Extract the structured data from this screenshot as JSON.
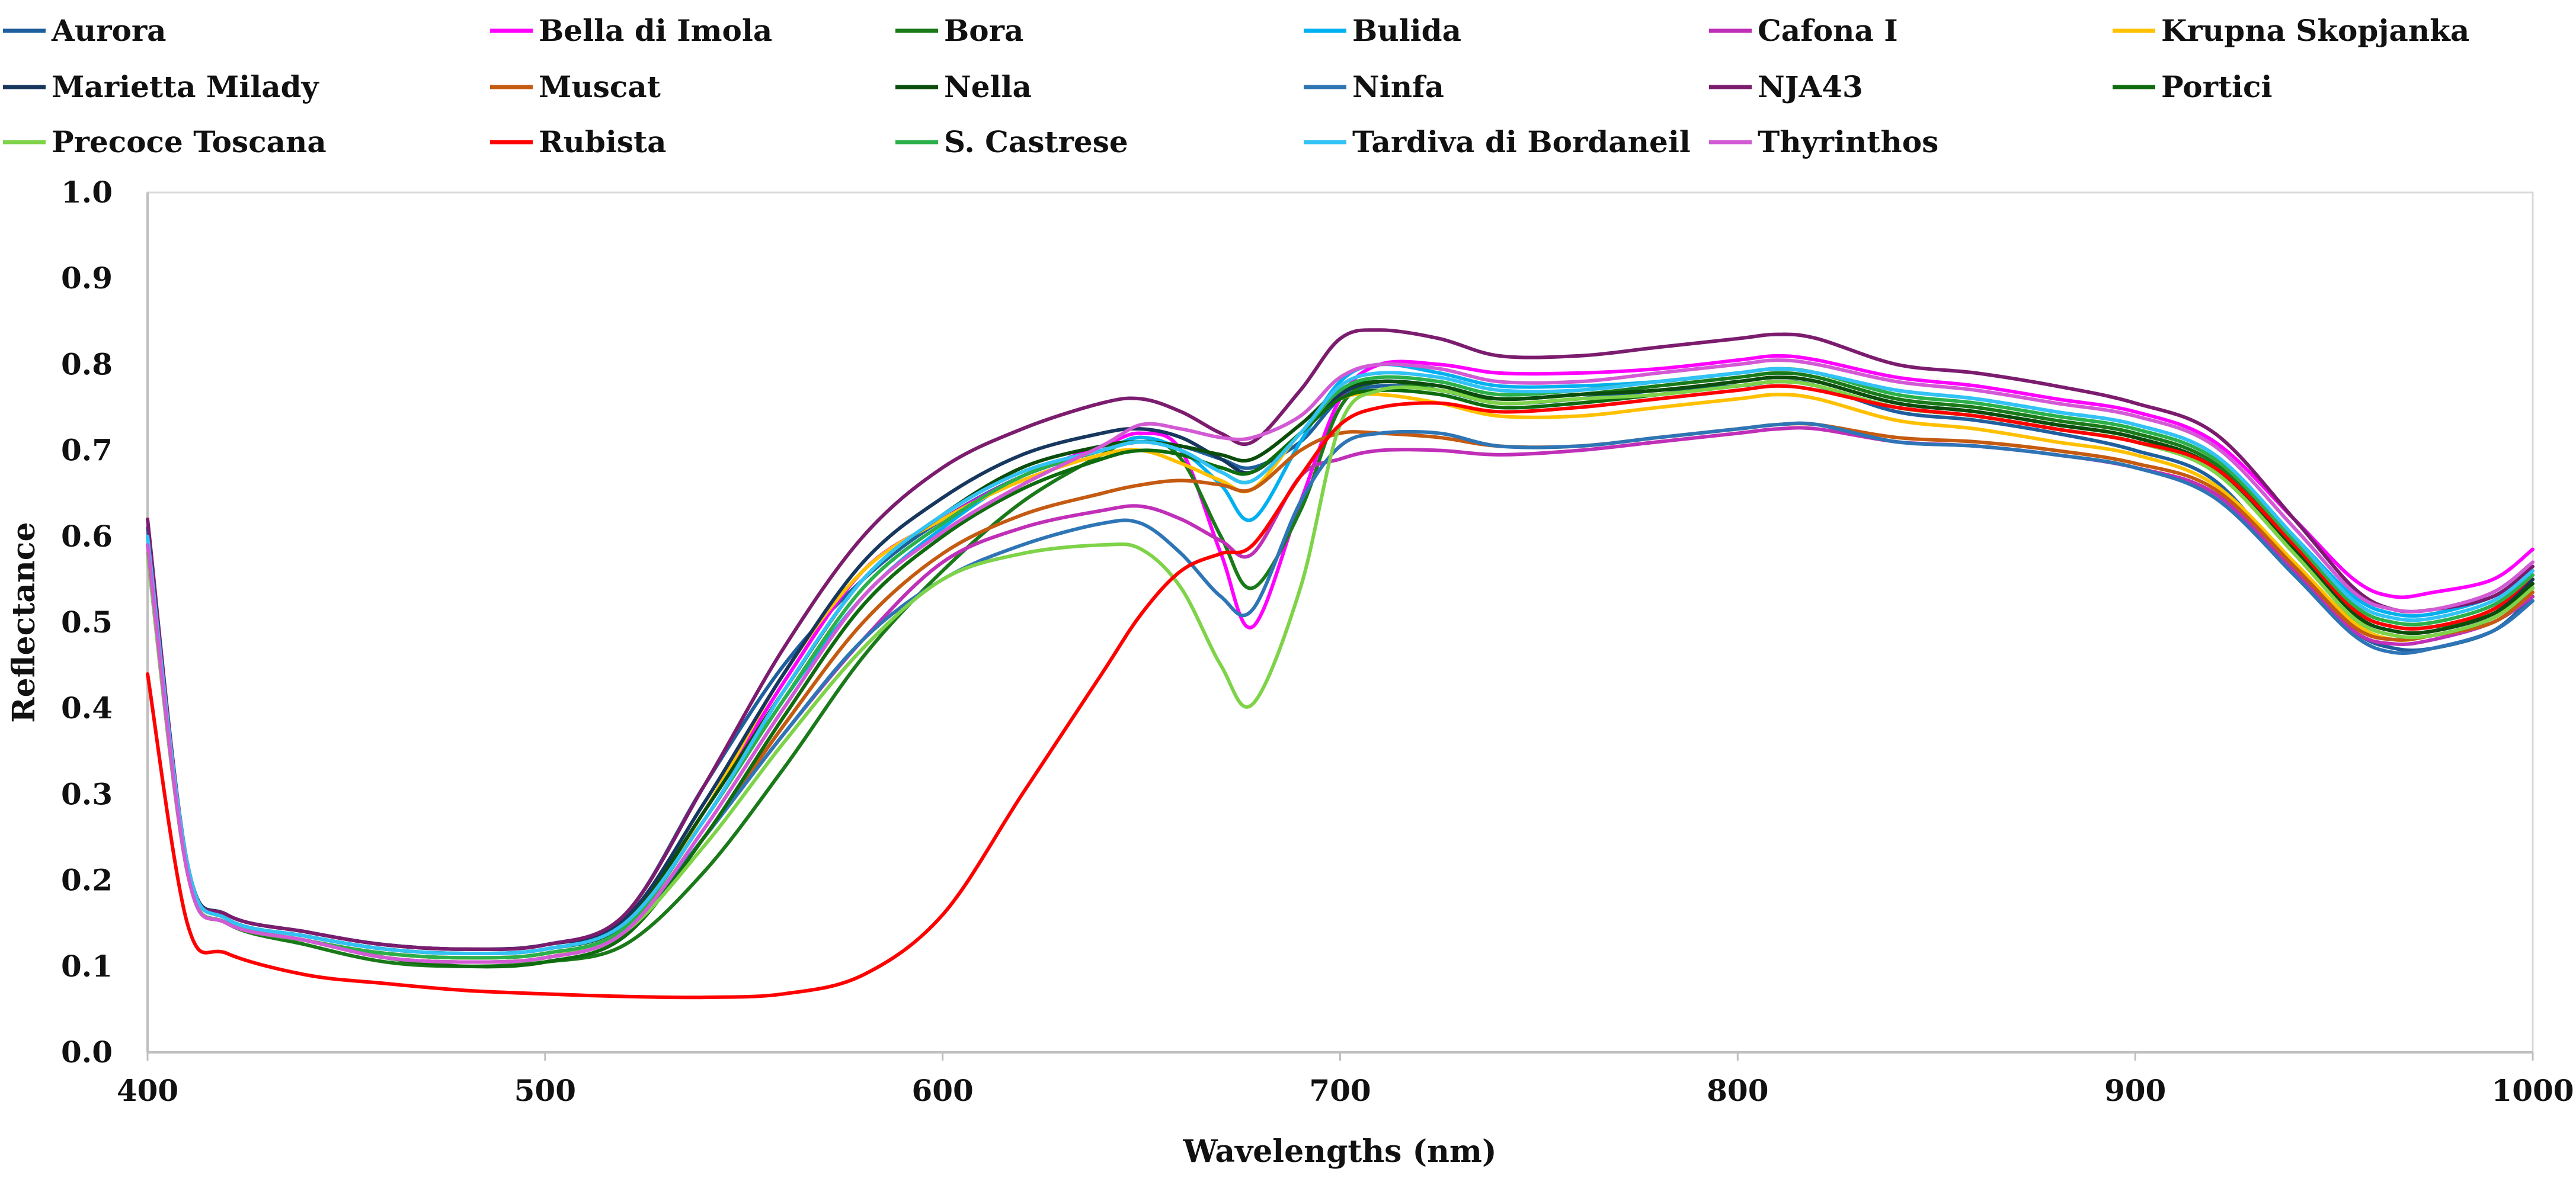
{
  "chart_data": {
    "type": "line",
    "title": "",
    "xlabel": "Wavelengths (nm)",
    "ylabel": "Reflectance",
    "xlim": [
      400,
      1000
    ],
    "ylim": [
      0.0,
      1.0
    ],
    "xticks": [
      400,
      500,
      600,
      700,
      800,
      900,
      1000
    ],
    "yticks": [
      0.0,
      0.1,
      0.2,
      0.3,
      0.4,
      0.5,
      0.6,
      0.7,
      0.8,
      0.9,
      1.0
    ],
    "xtick_labels": [
      "400",
      "500",
      "600",
      "700",
      "800",
      "900",
      "1000"
    ],
    "ytick_labels": [
      "0.0",
      "0.1",
      "0.2",
      "0.3",
      "0.4",
      "0.5",
      "0.6",
      "0.7",
      "0.8",
      "0.9",
      "1.0"
    ],
    "legend_position": "top",
    "grid": false,
    "x": [
      400,
      410,
      420,
      440,
      460,
      480,
      500,
      520,
      540,
      560,
      580,
      600,
      620,
      640,
      650,
      660,
      670,
      678,
      690,
      700,
      710,
      725,
      740,
      760,
      780,
      800,
      810,
      820,
      840,
      860,
      880,
      900,
      920,
      940,
      955,
      965,
      975,
      990,
      1000
    ],
    "series": [
      {
        "name": "Aurora",
        "color": "#1f5f9e",
        "values": [
          0.61,
          0.22,
          0.16,
          0.14,
          0.125,
          0.12,
          0.125,
          0.16,
          0.31,
          0.45,
          0.55,
          0.62,
          0.67,
          0.7,
          0.71,
          0.705,
          0.69,
          0.68,
          0.71,
          0.76,
          0.775,
          0.77,
          0.755,
          0.76,
          0.77,
          0.775,
          0.78,
          0.775,
          0.745,
          0.735,
          0.72,
          0.7,
          0.665,
          0.56,
          0.49,
          0.47,
          0.47,
          0.49,
          0.53
        ]
      },
      {
        "name": "Bella di Imola",
        "color": "#ff00ff",
        "values": [
          0.59,
          0.21,
          0.15,
          0.13,
          0.115,
          0.11,
          0.115,
          0.145,
          0.28,
          0.43,
          0.56,
          0.62,
          0.67,
          0.705,
          0.72,
          0.7,
          0.58,
          0.495,
          0.64,
          0.76,
          0.8,
          0.8,
          0.79,
          0.79,
          0.795,
          0.805,
          0.81,
          0.805,
          0.785,
          0.775,
          0.76,
          0.745,
          0.71,
          0.62,
          0.55,
          0.53,
          0.535,
          0.55,
          0.585
        ]
      },
      {
        "name": "Bora",
        "color": "#1a7a1a",
        "values": [
          0.58,
          0.21,
          0.15,
          0.125,
          0.105,
          0.1,
          0.105,
          0.125,
          0.21,
          0.33,
          0.46,
          0.56,
          0.64,
          0.695,
          0.715,
          0.69,
          0.6,
          0.54,
          0.63,
          0.75,
          0.78,
          0.77,
          0.76,
          0.765,
          0.775,
          0.785,
          0.79,
          0.785,
          0.76,
          0.75,
          0.735,
          0.72,
          0.685,
          0.59,
          0.515,
          0.495,
          0.495,
          0.51,
          0.55
        ]
      },
      {
        "name": "Bulida",
        "color": "#00b0f0",
        "values": [
          0.6,
          0.22,
          0.155,
          0.135,
          0.12,
          0.115,
          0.12,
          0.15,
          0.27,
          0.41,
          0.53,
          0.61,
          0.67,
          0.7,
          0.715,
          0.7,
          0.66,
          0.62,
          0.71,
          0.78,
          0.8,
          0.79,
          0.775,
          0.775,
          0.78,
          0.79,
          0.795,
          0.79,
          0.77,
          0.76,
          0.745,
          0.73,
          0.695,
          0.6,
          0.53,
          0.51,
          0.51,
          0.53,
          0.56
        ]
      },
      {
        "name": "Cafona I",
        "color": "#c02fb8",
        "values": [
          0.58,
          0.21,
          0.15,
          0.13,
          0.11,
          0.105,
          0.11,
          0.14,
          0.25,
          0.37,
          0.48,
          0.57,
          0.61,
          0.63,
          0.635,
          0.62,
          0.595,
          0.58,
          0.67,
          0.69,
          0.7,
          0.7,
          0.695,
          0.7,
          0.71,
          0.72,
          0.725,
          0.725,
          0.71,
          0.705,
          0.695,
          0.68,
          0.65,
          0.56,
          0.49,
          0.475,
          0.48,
          0.5,
          0.53
        ]
      },
      {
        "name": "Krupna Skopjanka",
        "color": "#ffc000",
        "values": [
          0.59,
          0.21,
          0.15,
          0.13,
          0.115,
          0.11,
          0.115,
          0.145,
          0.28,
          0.44,
          0.56,
          0.62,
          0.665,
          0.695,
          0.7,
          0.685,
          0.665,
          0.655,
          0.72,
          0.76,
          0.765,
          0.755,
          0.74,
          0.74,
          0.75,
          0.76,
          0.765,
          0.76,
          0.735,
          0.725,
          0.71,
          0.695,
          0.66,
          0.57,
          0.5,
          0.48,
          0.485,
          0.5,
          0.535
        ]
      },
      {
        "name": "Marietta Milady",
        "color": "#17375e",
        "values": [
          0.6,
          0.22,
          0.16,
          0.14,
          0.125,
          0.12,
          0.125,
          0.155,
          0.29,
          0.44,
          0.57,
          0.645,
          0.695,
          0.72,
          0.725,
          0.715,
          0.69,
          0.675,
          0.72,
          0.765,
          0.78,
          0.775,
          0.76,
          0.765,
          0.77,
          0.78,
          0.785,
          0.78,
          0.755,
          0.745,
          0.73,
          0.715,
          0.68,
          0.585,
          0.51,
          0.49,
          0.49,
          0.51,
          0.55
        ]
      },
      {
        "name": "Muscat",
        "color": "#c55a11",
        "values": [
          0.58,
          0.21,
          0.15,
          0.13,
          0.11,
          0.105,
          0.11,
          0.14,
          0.25,
          0.38,
          0.5,
          0.58,
          0.625,
          0.65,
          0.66,
          0.665,
          0.66,
          0.655,
          0.7,
          0.72,
          0.72,
          0.715,
          0.705,
          0.705,
          0.715,
          0.725,
          0.73,
          0.73,
          0.715,
          0.71,
          0.7,
          0.685,
          0.655,
          0.565,
          0.495,
          0.48,
          0.485,
          0.5,
          0.535
        ]
      },
      {
        "name": "Nella",
        "color": "#0b4d0b",
        "values": [
          0.6,
          0.22,
          0.155,
          0.135,
          0.12,
          0.115,
          0.12,
          0.15,
          0.28,
          0.42,
          0.55,
          0.625,
          0.68,
          0.705,
          0.71,
          0.705,
          0.695,
          0.69,
          0.73,
          0.77,
          0.78,
          0.775,
          0.76,
          0.765,
          0.77,
          0.78,
          0.785,
          0.78,
          0.755,
          0.745,
          0.73,
          0.715,
          0.68,
          0.585,
          0.51,
          0.49,
          0.49,
          0.51,
          0.545
        ]
      },
      {
        "name": "Ninfa",
        "color": "#2e75b6",
        "values": [
          0.58,
          0.21,
          0.15,
          0.13,
          0.11,
          0.105,
          0.11,
          0.14,
          0.25,
          0.37,
          0.48,
          0.55,
          0.59,
          0.615,
          0.615,
          0.58,
          0.53,
          0.515,
          0.64,
          0.705,
          0.72,
          0.72,
          0.705,
          0.705,
          0.715,
          0.725,
          0.73,
          0.73,
          0.71,
          0.705,
          0.695,
          0.68,
          0.645,
          0.555,
          0.485,
          0.465,
          0.47,
          0.49,
          0.525
        ]
      },
      {
        "name": "NJA43",
        "color": "#7b1c6e",
        "values": [
          0.62,
          0.22,
          0.16,
          0.14,
          0.125,
          0.12,
          0.125,
          0.16,
          0.31,
          0.47,
          0.6,
          0.68,
          0.725,
          0.755,
          0.76,
          0.745,
          0.72,
          0.71,
          0.77,
          0.83,
          0.84,
          0.83,
          0.81,
          0.81,
          0.82,
          0.83,
          0.835,
          0.83,
          0.8,
          0.79,
          0.775,
          0.755,
          0.72,
          0.62,
          0.54,
          0.515,
          0.515,
          0.53,
          0.565
        ]
      },
      {
        "name": "Portici",
        "color": "#0e6b0e",
        "values": [
          0.59,
          0.21,
          0.15,
          0.13,
          0.11,
          0.1,
          0.105,
          0.135,
          0.25,
          0.39,
          0.52,
          0.6,
          0.655,
          0.69,
          0.7,
          0.695,
          0.68,
          0.675,
          0.72,
          0.76,
          0.77,
          0.765,
          0.75,
          0.755,
          0.765,
          0.775,
          0.78,
          0.775,
          0.75,
          0.74,
          0.725,
          0.71,
          0.675,
          0.58,
          0.505,
          0.485,
          0.485,
          0.505,
          0.54
        ]
      },
      {
        "name": "Precoce Toscana",
        "color": "#7ed348",
        "values": [
          0.58,
          0.21,
          0.15,
          0.13,
          0.11,
          0.105,
          0.11,
          0.14,
          0.24,
          0.36,
          0.47,
          0.55,
          0.58,
          0.59,
          0.585,
          0.54,
          0.45,
          0.405,
          0.54,
          0.73,
          0.77,
          0.77,
          0.755,
          0.76,
          0.765,
          0.775,
          0.78,
          0.775,
          0.75,
          0.74,
          0.725,
          0.71,
          0.675,
          0.58,
          0.505,
          0.485,
          0.485,
          0.505,
          0.54
        ]
      },
      {
        "name": "Rubista",
        "color": "#ff0000",
        "values": [
          0.44,
          0.15,
          0.115,
          0.09,
          0.08,
          0.072,
          0.068,
          0.065,
          0.064,
          0.068,
          0.09,
          0.16,
          0.3,
          0.44,
          0.51,
          0.56,
          0.58,
          0.59,
          0.67,
          0.73,
          0.75,
          0.755,
          0.745,
          0.75,
          0.76,
          0.77,
          0.775,
          0.77,
          0.75,
          0.74,
          0.725,
          0.71,
          0.68,
          0.59,
          0.515,
          0.495,
          0.495,
          0.515,
          0.555
        ]
      },
      {
        "name": "S. Castrese",
        "color": "#2bb04a",
        "values": [
          0.59,
          0.21,
          0.15,
          0.13,
          0.115,
          0.11,
          0.115,
          0.145,
          0.27,
          0.41,
          0.54,
          0.615,
          0.67,
          0.7,
          0.71,
          0.7,
          0.675,
          0.665,
          0.72,
          0.77,
          0.785,
          0.78,
          0.765,
          0.77,
          0.78,
          0.79,
          0.795,
          0.79,
          0.765,
          0.755,
          0.74,
          0.725,
          0.69,
          0.595,
          0.52,
          0.5,
          0.5,
          0.52,
          0.555
        ]
      },
      {
        "name": "Tardiva di Bordaneil",
        "color": "#33c2f5",
        "values": [
          0.6,
          0.22,
          0.155,
          0.135,
          0.12,
          0.115,
          0.12,
          0.15,
          0.27,
          0.42,
          0.55,
          0.625,
          0.675,
          0.7,
          0.71,
          0.7,
          0.675,
          0.665,
          0.72,
          0.775,
          0.79,
          0.785,
          0.77,
          0.77,
          0.78,
          0.79,
          0.795,
          0.79,
          0.77,
          0.76,
          0.745,
          0.73,
          0.695,
          0.6,
          0.525,
          0.505,
          0.505,
          0.525,
          0.56
        ]
      },
      {
        "name": "Thyrinthos",
        "color": "#d25ad4",
        "values": [
          0.59,
          0.21,
          0.15,
          0.13,
          0.11,
          0.105,
          0.11,
          0.14,
          0.26,
          0.4,
          0.53,
          0.605,
          0.66,
          0.705,
          0.73,
          0.725,
          0.715,
          0.715,
          0.74,
          0.785,
          0.8,
          0.795,
          0.78,
          0.78,
          0.79,
          0.8,
          0.805,
          0.8,
          0.78,
          0.77,
          0.755,
          0.74,
          0.705,
          0.61,
          0.535,
          0.515,
          0.515,
          0.535,
          0.57
        ]
      }
    ]
  }
}
